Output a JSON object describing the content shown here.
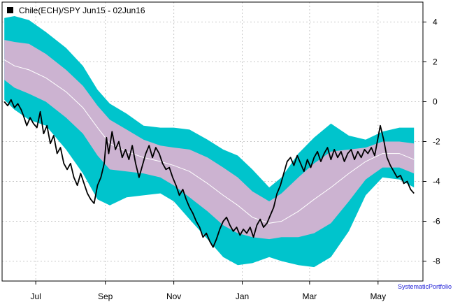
{
  "chart_data": {
    "type": "line",
    "title": "Chile(ECH)/SPY Jun15 - 02Jun16",
    "credit": "SystematicPortfolio",
    "ylim": [
      -9.0,
      5.0
    ],
    "y_ticks": [
      4,
      2,
      0,
      -2,
      -4,
      -6,
      -8
    ],
    "grid": true,
    "legend_position": "top-left",
    "x_domain": [
      "2015-06-01",
      "2016-06-10"
    ],
    "x_ticks": [
      {
        "label": "Jul",
        "date": "2015-07-01"
      },
      {
        "label": "Sep",
        "date": "2015-09-01"
      },
      {
        "label": "Nov",
        "date": "2015-11-01"
      },
      {
        "label": "Jan",
        "date": "2016-01-01"
      },
      {
        "label": "Mar",
        "date": "2016-03-01"
      },
      {
        "label": "May",
        "date": "2016-05-01"
      }
    ],
    "colors": {
      "outer_band": "#00c4cc",
      "inner_band": "#ccb3d1",
      "mid_line": "#ffffff",
      "price_line": "#000000",
      "grid": "#c8c8c8"
    },
    "bands": [
      {
        "date": "2015-06-03",
        "outer_hi": 4.2,
        "inner_hi": 3.1,
        "mid": 2.1,
        "inner_lo": 1.1,
        "outer_lo": 0.1
      },
      {
        "date": "2015-06-12",
        "outer_hi": 4.3,
        "inner_hi": 3.0,
        "mid": 1.8,
        "inner_lo": 0.7,
        "outer_lo": -0.4
      },
      {
        "date": "2015-06-25",
        "outer_hi": 4.1,
        "inner_hi": 2.9,
        "mid": 1.6,
        "inner_lo": 0.4,
        "outer_lo": -0.9
      },
      {
        "date": "2015-07-10",
        "outer_hi": 3.5,
        "inner_hi": 2.4,
        "mid": 1.2,
        "inner_lo": 0.0,
        "outer_lo": -1.2
      },
      {
        "date": "2015-07-28",
        "outer_hi": 2.7,
        "inner_hi": 1.6,
        "mid": 0.5,
        "inner_lo": -0.8,
        "outer_lo": -2.4
      },
      {
        "date": "2015-08-12",
        "outer_hi": 1.8,
        "inner_hi": 0.8,
        "mid": -0.3,
        "inner_lo": -1.6,
        "outer_lo": -3.6
      },
      {
        "date": "2015-08-25",
        "outer_hi": 0.6,
        "inner_hi": -0.2,
        "mid": -1.3,
        "inner_lo": -2.7,
        "outer_lo": -4.9
      },
      {
        "date": "2015-09-05",
        "outer_hi": -0.1,
        "inner_hi": -0.9,
        "mid": -2.1,
        "inner_lo": -3.4,
        "outer_lo": -5.2
      },
      {
        "date": "2015-09-20",
        "outer_hi": -0.6,
        "inner_hi": -1.4,
        "mid": -2.5,
        "inner_lo": -3.5,
        "outer_lo": -4.8
      },
      {
        "date": "2015-10-05",
        "outer_hi": -1.2,
        "inner_hi": -1.9,
        "mid": -2.8,
        "inner_lo": -3.6,
        "outer_lo": -4.7
      },
      {
        "date": "2015-10-20",
        "outer_hi": -1.3,
        "inner_hi": -2.2,
        "mid": -3.0,
        "inner_lo": -3.8,
        "outer_lo": -4.6
      },
      {
        "date": "2015-11-01",
        "outer_hi": -1.3,
        "inner_hi": -2.3,
        "mid": -3.2,
        "inner_lo": -4.2,
        "outer_lo": -5.0
      },
      {
        "date": "2015-11-15",
        "outer_hi": -1.4,
        "inner_hi": -2.4,
        "mid": -3.5,
        "inner_lo": -4.8,
        "outer_lo": -5.9
      },
      {
        "date": "2015-12-01",
        "outer_hi": -1.9,
        "inner_hi": -2.8,
        "mid": -4.1,
        "inner_lo": -5.5,
        "outer_lo": -6.9
      },
      {
        "date": "2015-12-15",
        "outer_hi": -2.4,
        "inner_hi": -3.3,
        "mid": -4.7,
        "inner_lo": -6.2,
        "outer_lo": -7.8
      },
      {
        "date": "2015-12-28",
        "outer_hi": -2.7,
        "inner_hi": -3.8,
        "mid": -5.2,
        "inner_lo": -6.6,
        "outer_lo": -8.2
      },
      {
        "date": "2016-01-10",
        "outer_hi": -3.4,
        "inner_hi": -4.5,
        "mid": -5.8,
        "inner_lo": -6.8,
        "outer_lo": -8.1
      },
      {
        "date": "2016-01-25",
        "outer_hi": -4.3,
        "inner_hi": -5.0,
        "mid": -6.1,
        "inner_lo": -6.9,
        "outer_lo": -7.8
      },
      {
        "date": "2016-02-05",
        "outer_hi": -3.8,
        "inner_hi": -4.6,
        "mid": -6.0,
        "inner_lo": -6.8,
        "outer_lo": -8.0
      },
      {
        "date": "2016-02-20",
        "outer_hi": -2.6,
        "inner_hi": -3.8,
        "mid": -5.5,
        "inner_lo": -6.8,
        "outer_lo": -8.2
      },
      {
        "date": "2016-03-05",
        "outer_hi": -1.8,
        "inner_hi": -3.1,
        "mid": -4.9,
        "inner_lo": -6.6,
        "outer_lo": -8.3
      },
      {
        "date": "2016-03-20",
        "outer_hi": -1.1,
        "inner_hi": -2.5,
        "mid": -4.3,
        "inner_lo": -6.1,
        "outer_lo": -7.8
      },
      {
        "date": "2016-04-05",
        "outer_hi": -1.7,
        "inner_hi": -2.4,
        "mid": -3.6,
        "inner_lo": -5.0,
        "outer_lo": -6.5
      },
      {
        "date": "2016-04-20",
        "outer_hi": -1.9,
        "inner_hi": -2.3,
        "mid": -3.0,
        "inner_lo": -3.9,
        "outer_lo": -4.7
      },
      {
        "date": "2016-05-05",
        "outer_hi": -1.5,
        "inner_hi": -2.0,
        "mid": -2.6,
        "inner_lo": -3.3,
        "outer_lo": -3.8
      },
      {
        "date": "2016-05-20",
        "outer_hi": -1.3,
        "inner_hi": -2.0,
        "mid": -2.6,
        "inner_lo": -3.3,
        "outer_lo": -3.9
      },
      {
        "date": "2016-06-02",
        "outer_hi": -1.3,
        "inner_hi": -2.1,
        "mid": -2.9,
        "inner_lo": -3.6,
        "outer_lo": -4.3
      }
    ],
    "series": [
      {
        "name": "Chile(ECH)/SPY Jun15 - 02Jun16",
        "points": [
          [
            "2015-06-03",
            0.0
          ],
          [
            "2015-06-06",
            -0.2
          ],
          [
            "2015-06-09",
            0.1
          ],
          [
            "2015-06-12",
            -0.3
          ],
          [
            "2015-06-15",
            -0.1
          ],
          [
            "2015-06-18",
            -0.4
          ],
          [
            "2015-06-20",
            -0.7
          ],
          [
            "2015-06-23",
            -1.2
          ],
          [
            "2015-06-26",
            -0.8
          ],
          [
            "2015-06-29",
            -1.1
          ],
          [
            "2015-07-02",
            -1.3
          ],
          [
            "2015-07-05",
            -0.5
          ],
          [
            "2015-07-08",
            -1.6
          ],
          [
            "2015-07-11",
            -1.2
          ],
          [
            "2015-07-14",
            -2.1
          ],
          [
            "2015-07-17",
            -1.7
          ],
          [
            "2015-07-20",
            -2.6
          ],
          [
            "2015-07-23",
            -2.3
          ],
          [
            "2015-07-26",
            -3.1
          ],
          [
            "2015-07-29",
            -3.4
          ],
          [
            "2015-08-01",
            -3.1
          ],
          [
            "2015-08-04",
            -3.8
          ],
          [
            "2015-08-07",
            -4.2
          ],
          [
            "2015-08-10",
            -3.6
          ],
          [
            "2015-08-13",
            -4.1
          ],
          [
            "2015-08-16",
            -4.6
          ],
          [
            "2015-08-19",
            -4.9
          ],
          [
            "2015-08-22",
            -5.1
          ],
          [
            "2015-08-25",
            -4.2
          ],
          [
            "2015-08-28",
            -3.8
          ],
          [
            "2015-08-31",
            -3.1
          ],
          [
            "2015-09-02",
            -1.8
          ],
          [
            "2015-09-04",
            -2.6
          ],
          [
            "2015-09-07",
            -1.5
          ],
          [
            "2015-09-10",
            -2.4
          ],
          [
            "2015-09-13",
            -2.0
          ],
          [
            "2015-09-16",
            -2.8
          ],
          [
            "2015-09-19",
            -2.4
          ],
          [
            "2015-09-22",
            -2.9
          ],
          [
            "2015-09-25",
            -2.2
          ],
          [
            "2015-09-28",
            -3.1
          ],
          [
            "2015-10-01",
            -3.8
          ],
          [
            "2015-10-04",
            -3.2
          ],
          [
            "2015-10-07",
            -2.6
          ],
          [
            "2015-10-10",
            -2.2
          ],
          [
            "2015-10-13",
            -2.8
          ],
          [
            "2015-10-16",
            -2.3
          ],
          [
            "2015-10-19",
            -2.6
          ],
          [
            "2015-10-22",
            -3.1
          ],
          [
            "2015-10-25",
            -3.4
          ],
          [
            "2015-10-28",
            -3.3
          ],
          [
            "2015-10-31",
            -3.8
          ],
          [
            "2015-11-03",
            -4.2
          ],
          [
            "2015-11-06",
            -4.7
          ],
          [
            "2015-11-09",
            -4.4
          ],
          [
            "2015-11-12",
            -4.9
          ],
          [
            "2015-11-15",
            -5.3
          ],
          [
            "2015-11-18",
            -5.6
          ],
          [
            "2015-11-21",
            -6.0
          ],
          [
            "2015-11-24",
            -6.3
          ],
          [
            "2015-11-27",
            -6.8
          ],
          [
            "2015-11-30",
            -6.6
          ],
          [
            "2015-12-03",
            -7.0
          ],
          [
            "2015-12-06",
            -7.3
          ],
          [
            "2015-12-09",
            -6.9
          ],
          [
            "2015-12-12",
            -6.4
          ],
          [
            "2015-12-15",
            -6.0
          ],
          [
            "2015-12-18",
            -5.8
          ],
          [
            "2015-12-21",
            -6.2
          ],
          [
            "2015-12-24",
            -6.5
          ],
          [
            "2015-12-27",
            -6.3
          ],
          [
            "2015-12-30",
            -6.7
          ],
          [
            "2016-01-02",
            -6.4
          ],
          [
            "2016-01-05",
            -6.6
          ],
          [
            "2016-01-08",
            -6.3
          ],
          [
            "2016-01-11",
            -6.8
          ],
          [
            "2016-01-14",
            -6.2
          ],
          [
            "2016-01-17",
            -5.9
          ],
          [
            "2016-01-20",
            -6.3
          ],
          [
            "2016-01-23",
            -6.1
          ],
          [
            "2016-01-26",
            -5.7
          ],
          [
            "2016-01-29",
            -5.3
          ],
          [
            "2016-02-01",
            -4.6
          ],
          [
            "2016-02-04",
            -4.2
          ],
          [
            "2016-02-07",
            -3.6
          ],
          [
            "2016-02-10",
            -3.0
          ],
          [
            "2016-02-13",
            -2.8
          ],
          [
            "2016-02-16",
            -3.2
          ],
          [
            "2016-02-19",
            -2.7
          ],
          [
            "2016-02-22",
            -3.1
          ],
          [
            "2016-02-25",
            -3.5
          ],
          [
            "2016-02-28",
            -2.9
          ],
          [
            "2016-03-02",
            -3.3
          ],
          [
            "2016-03-05",
            -2.8
          ],
          [
            "2016-03-08",
            -2.5
          ],
          [
            "2016-03-11",
            -3.0
          ],
          [
            "2016-03-14",
            -2.6
          ],
          [
            "2016-03-17",
            -2.3
          ],
          [
            "2016-03-20",
            -2.9
          ],
          [
            "2016-03-23",
            -2.4
          ],
          [
            "2016-03-26",
            -2.8
          ],
          [
            "2016-03-29",
            -2.5
          ],
          [
            "2016-04-01",
            -3.0
          ],
          [
            "2016-04-04",
            -2.6
          ],
          [
            "2016-04-07",
            -2.4
          ],
          [
            "2016-04-10",
            -2.9
          ],
          [
            "2016-04-13",
            -2.5
          ],
          [
            "2016-04-16",
            -2.8
          ],
          [
            "2016-04-19",
            -2.4
          ],
          [
            "2016-04-22",
            -2.6
          ],
          [
            "2016-04-25",
            -2.3
          ],
          [
            "2016-04-28",
            -2.7
          ],
          [
            "2016-05-01",
            -1.8
          ],
          [
            "2016-05-03",
            -1.2
          ],
          [
            "2016-05-06",
            -1.9
          ],
          [
            "2016-05-09",
            -2.8
          ],
          [
            "2016-05-12",
            -3.2
          ],
          [
            "2016-05-15",
            -3.5
          ],
          [
            "2016-05-18",
            -3.8
          ],
          [
            "2016-05-21",
            -3.7
          ],
          [
            "2016-05-24",
            -4.1
          ],
          [
            "2016-05-27",
            -4.0
          ],
          [
            "2016-05-30",
            -4.4
          ],
          [
            "2016-06-02",
            -4.6
          ]
        ]
      }
    ]
  }
}
